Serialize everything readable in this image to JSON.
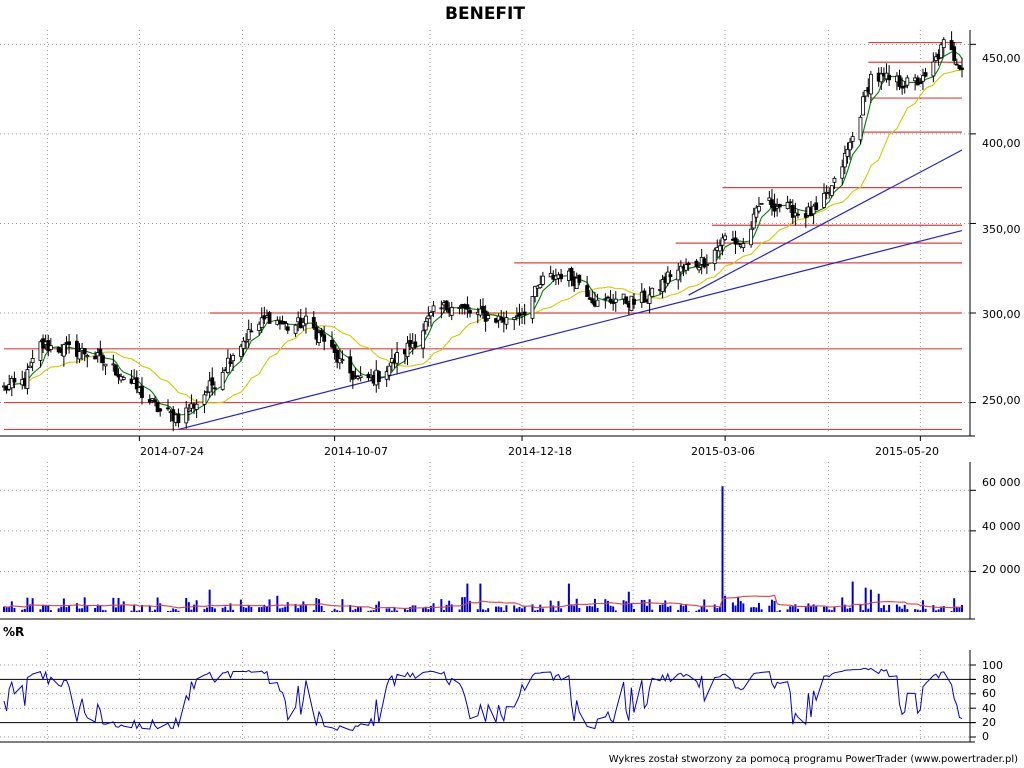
{
  "title": "BENEFIT",
  "footer": "Wykres został stworzony za pomocą programu PowerTrader (www.powertrader.pl)",
  "price_panel": {
    "x_dates": [
      "2014-07-24",
      "2014-10-07",
      "2014-12-18",
      "2015-03-06",
      "2015-05-20"
    ],
    "y_ticks": [
      "250,00",
      "300,00",
      "350,00",
      "400,00",
      "450,00"
    ]
  },
  "volume_panel": {
    "y_ticks": [
      "20 000",
      "40 000",
      "60 000"
    ]
  },
  "wr_panel": {
    "label": "%R",
    "y_ticks": [
      "0",
      "20",
      "40",
      "60",
      "80",
      "100"
    ]
  },
  "colors": {
    "candle": "#000000",
    "ma_short": "#008000",
    "ma_long": "#d4c800",
    "support_resistance": "#e04040",
    "trendline": "#2222cc",
    "volume_bars": "#0000cc",
    "volume_avg": "#e04040",
    "wr_line": "#0000cc",
    "grid": "#999999"
  },
  "chart_data": [
    {
      "type": "candlestick",
      "title": "BENEFIT",
      "x_range": [
        "2014-06-02",
        "2015-06-05"
      ],
      "ylim": [
        233,
        458
      ],
      "grid": true,
      "price_anchors": [
        [
          "2014-06-02",
          258
        ],
        [
          "2014-06-10",
          262
        ],
        [
          "2014-06-16",
          282
        ],
        [
          "2014-06-25",
          280
        ],
        [
          "2014-07-04",
          278
        ],
        [
          "2014-07-11",
          272
        ],
        [
          "2014-07-18",
          265
        ],
        [
          "2014-07-25",
          255
        ],
        [
          "2014-08-01",
          245
        ],
        [
          "2014-08-08",
          242
        ],
        [
          "2014-08-15",
          250
        ],
        [
          "2014-08-22",
          262
        ],
        [
          "2014-08-29",
          278
        ],
        [
          "2014-09-05",
          290
        ],
        [
          "2014-09-12",
          298
        ],
        [
          "2014-09-19",
          292
        ],
        [
          "2014-09-26",
          295
        ],
        [
          "2014-10-03",
          285
        ],
        [
          "2014-10-10",
          270
        ],
        [
          "2014-10-17",
          262
        ],
        [
          "2014-10-24",
          265
        ],
        [
          "2014-10-31",
          275
        ],
        [
          "2014-11-07",
          285
        ],
        [
          "2014-11-14",
          300
        ],
        [
          "2014-11-21",
          305
        ],
        [
          "2014-11-28",
          300
        ],
        [
          "2014-12-05",
          298
        ],
        [
          "2014-12-12",
          296
        ],
        [
          "2014-12-19",
          302
        ],
        [
          "2014-12-26",
          318
        ],
        [
          "2015-01-02",
          322
        ],
        [
          "2015-01-09",
          318
        ],
        [
          "2015-01-16",
          305
        ],
        [
          "2015-01-23",
          308
        ],
        [
          "2015-01-30",
          306
        ],
        [
          "2015-02-06",
          310
        ],
        [
          "2015-02-13",
          322
        ],
        [
          "2015-02-20",
          326
        ],
        [
          "2015-02-27",
          330
        ],
        [
          "2015-03-06",
          342
        ],
        [
          "2015-03-13",
          338
        ],
        [
          "2015-03-20",
          362
        ],
        [
          "2015-03-27",
          360
        ],
        [
          "2015-04-03",
          356
        ],
        [
          "2015-04-10",
          356
        ],
        [
          "2015-04-17",
          372
        ],
        [
          "2015-04-24",
          398
        ],
        [
          "2015-05-01",
          432
        ],
        [
          "2015-05-08",
          430
        ],
        [
          "2015-05-15",
          428
        ],
        [
          "2015-05-22",
          430
        ],
        [
          "2015-05-29",
          450
        ],
        [
          "2015-06-05",
          438
        ]
      ],
      "support_lines": [
        {
          "y": 235,
          "from": "2014-06-02",
          "to": "2015-06-05"
        },
        {
          "y": 250,
          "from": "2014-06-02",
          "to": "2015-06-05"
        },
        {
          "y": 280,
          "from": "2014-06-02",
          "to": "2015-06-05"
        },
        {
          "y": 300,
          "from": "2014-08-20",
          "to": "2015-06-05"
        },
        {
          "y": 328,
          "from": "2014-12-15",
          "to": "2015-06-05"
        },
        {
          "y": 339,
          "from": "2015-02-15",
          "to": "2015-06-05"
        },
        {
          "y": 349,
          "from": "2015-03-01",
          "to": "2015-06-05"
        },
        {
          "y": 370,
          "from": "2015-03-05",
          "to": "2015-06-05"
        },
        {
          "y": 401,
          "from": "2015-04-28",
          "to": "2015-06-05"
        },
        {
          "y": 420,
          "from": "2015-05-01",
          "to": "2015-06-05"
        },
        {
          "y": 440,
          "from": "2015-04-30",
          "to": "2015-06-05"
        },
        {
          "y": 451,
          "from": "2015-04-30",
          "to": "2015-06-05"
        }
      ],
      "trendlines": [
        {
          "x1": "2014-08-08",
          "y1": 235,
          "x2": "2015-06-05",
          "y2": 346
        },
        {
          "x1": "2015-02-20",
          "y1": 310,
          "x2": "2015-06-05",
          "y2": 391
        }
      ]
    },
    {
      "type": "bar",
      "title": "",
      "ylim": [
        0,
        70000
      ],
      "grid": true,
      "spikes": [
        {
          "date": "2014-08-20",
          "value": 11000
        },
        {
          "date": "2014-09-15",
          "value": 8000
        },
        {
          "date": "2014-11-27",
          "value": 14000
        },
        {
          "date": "2014-12-02",
          "value": 14000
        },
        {
          "date": "2015-01-05",
          "value": 14000
        },
        {
          "date": "2015-01-28",
          "value": 10000
        },
        {
          "date": "2015-03-05",
          "value": 62000
        },
        {
          "date": "2015-03-06",
          "value": 8000
        },
        {
          "date": "2015-04-24",
          "value": 15000
        },
        {
          "date": "2015-04-29",
          "value": 12000
        },
        {
          "date": "2015-05-01",
          "value": 11000
        },
        {
          "date": "2015-05-04",
          "value": 9000
        }
      ]
    },
    {
      "type": "line",
      "title": "",
      "series_name": "%R",
      "ylim": [
        0,
        100
      ],
      "reference_lines": [
        20,
        80
      ],
      "grid": true
    }
  ]
}
